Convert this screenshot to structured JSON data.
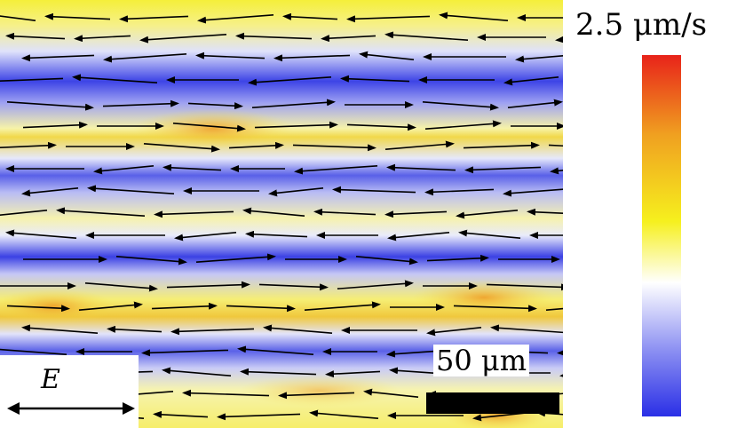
{
  "colorbar": {
    "max_label": "2.5 μm/s",
    "colors": [
      "#e8231a",
      "#f0a020",
      "#f6f01e",
      "#ffffff",
      "#8a8ef2",
      "#2a2fe6"
    ]
  },
  "scalebar": {
    "label": "50 μm"
  },
  "field": {
    "label": "E"
  }
}
